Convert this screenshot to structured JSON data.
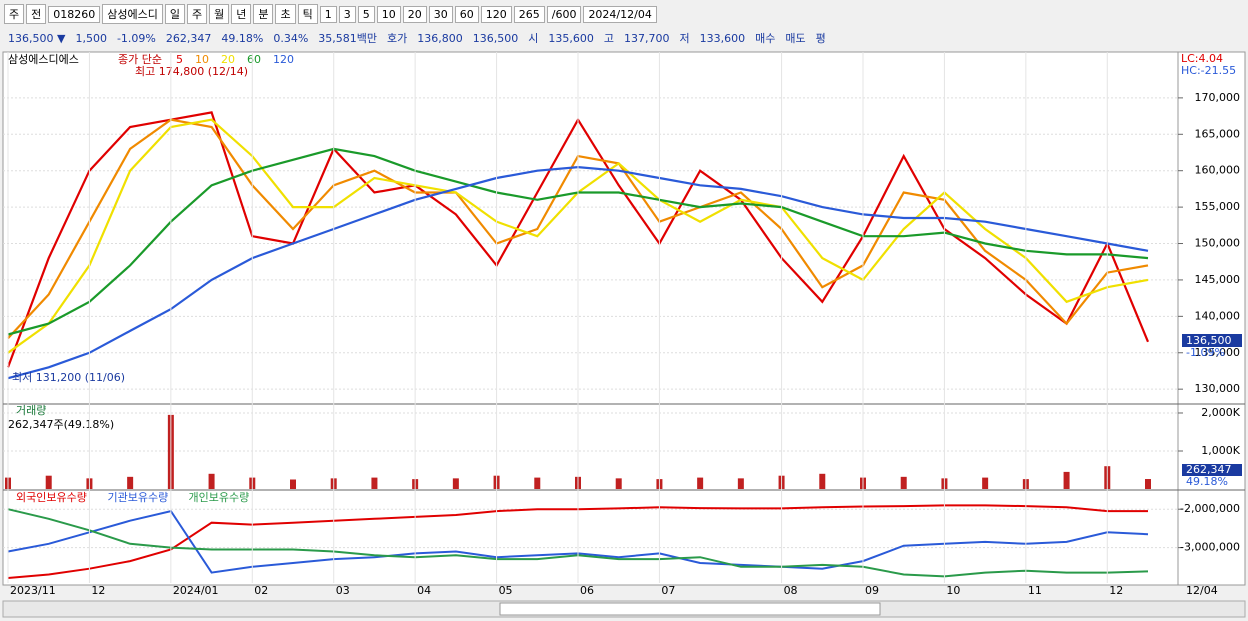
{
  "toolbar": {
    "items": [
      "주",
      "전",
      "018260",
      "삼성에스디",
      "일",
      "주",
      "월",
      "년",
      "분",
      "초",
      "틱",
      "1",
      "3",
      "5",
      "10",
      "20",
      "30",
      "60",
      "120",
      "265",
      "/600",
      "2024/12/04"
    ]
  },
  "infobar": {
    "items": [
      "136,500 ▼",
      "1,500",
      "-1.09%",
      "262,347",
      "49.18%",
      "0.34%",
      "35,581백만",
      "호가",
      "136,800",
      "136,500",
      "시",
      "135,600",
      "고",
      "137,700",
      "저",
      "133,600",
      "매수",
      "매도",
      "평"
    ]
  },
  "x_axis_end": "12/04",
  "chart_data": [
    {
      "type": "line",
      "title": "삼성에스디에스",
      "legend_title": "종가 단순",
      "grid": true,
      "categories": [
        "2023/11",
        null,
        "12",
        null,
        "2024/01",
        null,
        "02",
        null,
        "03",
        null,
        "04",
        null,
        "05",
        null,
        "06",
        null,
        "07",
        null,
        null,
        "08",
        null,
        "09",
        null,
        "10",
        null,
        "11",
        null,
        "12",
        null
      ],
      "series": [
        {
          "name": "5",
          "color": "#e00000",
          "values": [
            133000,
            148000,
            160000,
            166000,
            167000,
            168000,
            151000,
            150000,
            163000,
            157000,
            158000,
            154000,
            147000,
            157000,
            167000,
            158000,
            150000,
            160000,
            156000,
            148000,
            142000,
            151000,
            162000,
            152000,
            148000,
            143000,
            139000,
            150000,
            136500
          ]
        },
        {
          "name": "10",
          "color": "#f08a00",
          "values": [
            137000,
            143000,
            153000,
            163000,
            167000,
            166000,
            158000,
            152000,
            158000,
            160000,
            157000,
            157000,
            150000,
            152000,
            162000,
            161000,
            153000,
            155000,
            157000,
            152000,
            144000,
            147000,
            157000,
            156000,
            149000,
            145000,
            139000,
            146000,
            147000
          ]
        },
        {
          "name": "20",
          "color": "#f0e000",
          "values": [
            135000,
            139000,
            147000,
            160000,
            166000,
            167000,
            162000,
            155000,
            155000,
            159000,
            158000,
            157000,
            153000,
            151000,
            157000,
            161000,
            156000,
            153000,
            156000,
            155000,
            148000,
            145000,
            152000,
            157000,
            152000,
            148000,
            142000,
            144000,
            145000
          ]
        },
        {
          "name": "60",
          "color": "#1a9a2a",
          "values": [
            137500,
            139000,
            142000,
            147000,
            153000,
            158000,
            160000,
            161500,
            163000,
            162000,
            160000,
            158500,
            157000,
            156000,
            157000,
            157000,
            156000,
            155000,
            155500,
            155000,
            153000,
            151000,
            151000,
            151500,
            150000,
            149000,
            148500,
            148500,
            148000
          ]
        },
        {
          "name": "120",
          "color": "#2a5ad8",
          "values": [
            131500,
            133000,
            135000,
            138000,
            141000,
            145000,
            148000,
            150000,
            152000,
            154000,
            156000,
            157500,
            159000,
            160000,
            160500,
            160000,
            159000,
            158000,
            157500,
            156500,
            155000,
            154000,
            153500,
            153500,
            153000,
            152000,
            151000,
            150000,
            149000
          ]
        }
      ],
      "ylim": [
        128100,
        176300
      ],
      "yticks": [
        {
          "value": 130000,
          "label": "130,000"
        },
        {
          "value": 135000,
          "label": "135,000"
        },
        {
          "value": 140000,
          "label": "140,000"
        },
        {
          "value": 145000,
          "label": "145,000"
        },
        {
          "value": 150000,
          "label": "150,000"
        },
        {
          "value": 155000,
          "label": "155,000"
        },
        {
          "value": 160000,
          "label": "160,000"
        },
        {
          "value": 165000,
          "label": "165,000"
        },
        {
          "value": 170000,
          "label": "170,000"
        }
      ],
      "annotations": {
        "high": "최고 174,800 (12/14)",
        "low": "최저 131,200 (11/06)",
        "lc": "LC:4.04",
        "hc": "HC:-21.55",
        "last_price": "136,500",
        "last_change": "-1.09%"
      }
    },
    {
      "type": "bar",
      "title": "거래량",
      "label": "262,347주(49.18%)",
      "color": "#c02020",
      "values": [
        300000,
        350000,
        280000,
        320000,
        1950000,
        400000,
        300000,
        250000,
        280000,
        300000,
        260000,
        280000,
        350000,
        300000,
        320000,
        280000,
        260000,
        300000,
        280000,
        350000,
        400000,
        300000,
        320000,
        280000,
        300000,
        260000,
        450000,
        600000,
        262347
      ],
      "ylim": [
        0,
        2210000
      ],
      "yticks": [
        {
          "value": 1000000,
          "label": "1,000K"
        },
        {
          "value": 2000000,
          "label": "2,000K"
        }
      ],
      "last_value": "262,347",
      "last_pct": "49.18%"
    },
    {
      "type": "line",
      "series": [
        {
          "name": "외국인보유수량",
          "color": "#e00000",
          "values": [
            -3790000,
            -3700000,
            -3550000,
            -3350000,
            -3050000,
            -2350000,
            -2400000,
            -2350000,
            -2300000,
            -2250000,
            -2200000,
            -2150000,
            -2050000,
            -2000000,
            -2000000,
            -1980000,
            -1950000,
            -1970000,
            -1980000,
            -1980000,
            -1950000,
            -1930000,
            -1920000,
            -1900000,
            -1900000,
            -1920000,
            -1950000,
            -2050000,
            -2050000
          ]
        },
        {
          "name": "기관보유수량",
          "color": "#2a5ad8",
          "values": [
            -3100000,
            -2900000,
            -2600000,
            -2300000,
            -2050000,
            -3650000,
            -3500000,
            -3400000,
            -3300000,
            -3250000,
            -3150000,
            -3100000,
            -3250000,
            -3200000,
            -3150000,
            -3250000,
            -3150000,
            -3400000,
            -3450000,
            -3500000,
            -3550000,
            -3350000,
            -2950000,
            -2900000,
            -2850000,
            -2900000,
            -2850000,
            -2600000,
            -2650000
          ]
        },
        {
          "name": "개인보유수량",
          "color": "#2a9a4a",
          "values": [
            -2000000,
            -2250000,
            -2550000,
            -2900000,
            -3000000,
            -3050000,
            -3050000,
            -3050000,
            -3100000,
            -3200000,
            -3250000,
            -3200000,
            -3300000,
            -3300000,
            -3200000,
            -3300000,
            -3300000,
            -3250000,
            -3500000,
            -3500000,
            -3450000,
            -3500000,
            -3700000,
            -3750000,
            -3650000,
            -3600000,
            -3650000,
            -3650000,
            -3620000
          ]
        }
      ],
      "ylim": [
        -3921000,
        -1526000
      ],
      "yticks": [
        {
          "value": -2000000,
          "label": "-2,000,000"
        },
        {
          "value": -3000000,
          "label": "-3,000,000"
        }
      ]
    }
  ]
}
